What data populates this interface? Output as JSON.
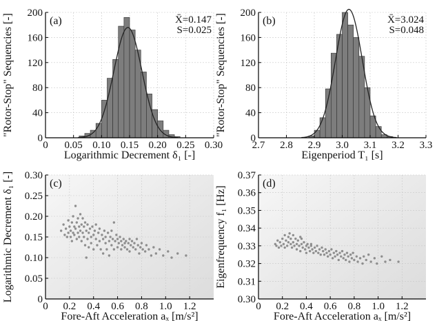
{
  "colors": {
    "bar_fill": "#7d7d7d",
    "bar_stroke": "#2e2e2e",
    "fit_curve": "#222222",
    "point": "#8e8e8e",
    "axis": "#000000",
    "grid": "#c8c8c8"
  },
  "chart_data": [
    {
      "id": "a",
      "type": "bar",
      "panel_label": "(a)",
      "xlabel": "Logarithmic Decrement δ₁ [-]",
      "ylabel": "\"Rotor-Stop\" Sequencies [-]",
      "stats": [
        "X̄=0.147",
        "S=0.025"
      ],
      "xlim": [
        0,
        0.3
      ],
      "ylim": [
        0,
        200
      ],
      "xticks": [
        "0",
        "0.05",
        "0.10",
        "0.15",
        "0.20",
        "0.25",
        "0.30"
      ],
      "yticks": [
        "0",
        "40",
        "80",
        "120",
        "160",
        "200"
      ],
      "xtick_values": [
        0,
        0.05,
        0.1,
        0.15,
        0.2,
        0.25,
        0.3
      ],
      "ytick_values": [
        0,
        40,
        80,
        120,
        160,
        200
      ],
      "bin_width": 0.01,
      "bin_starts": [
        0.06,
        0.07,
        0.08,
        0.09,
        0.1,
        0.11,
        0.12,
        0.13,
        0.14,
        0.15,
        0.16,
        0.17,
        0.18,
        0.19,
        0.2,
        0.21,
        0.22,
        0.23
      ],
      "values": [
        3,
        7,
        12,
        23,
        60,
        95,
        125,
        178,
        192,
        172,
        140,
        105,
        70,
        45,
        27,
        12,
        5,
        2
      ],
      "fit": {
        "mean": 0.147,
        "std": 0.025,
        "peak": 176
      },
      "grid": true
    },
    {
      "id": "b",
      "type": "bar",
      "panel_label": "(b)",
      "xlabel": "Eigenperiod T₁ [s]",
      "ylabel": "\"Rotor-Stop\" Sequencies [-]",
      "stats": [
        "X̄=3.024",
        "S=0.048"
      ],
      "xlim": [
        2.7,
        3.3
      ],
      "ylim": [
        0,
        200
      ],
      "xticks": [
        "2.7",
        "2.8",
        "2.9",
        "3.0",
        "3.1",
        "3.2",
        "3.3"
      ],
      "yticks": [
        "0",
        "40",
        "80",
        "120",
        "160",
        "200"
      ],
      "xtick_values": [
        2.7,
        2.8,
        2.9,
        3.0,
        3.1,
        3.2,
        3.3
      ],
      "ytick_values": [
        0,
        40,
        80,
        120,
        160,
        200
      ],
      "bin_width": 0.02,
      "bin_starts": [
        2.88,
        2.9,
        2.92,
        2.94,
        2.96,
        2.98,
        3.0,
        3.02,
        3.04,
        3.06,
        3.08,
        3.1,
        3.12,
        3.14,
        3.16
      ],
      "values": [
        3,
        12,
        32,
        78,
        135,
        165,
        200,
        180,
        160,
        130,
        80,
        35,
        18,
        5,
        2
      ],
      "fit": {
        "mean": 3.024,
        "std": 0.048,
        "peak": 205
      },
      "grid": true
    },
    {
      "id": "c",
      "type": "scatter",
      "panel_label": "(c)",
      "xlabel": "Fore-Aft Acceleration aₓ [m/s²]",
      "ylabel": "Logarithmic Decrement δ₁ [-]",
      "xlim": [
        0,
        1.4
      ],
      "ylim": [
        0,
        0.3
      ],
      "xticks": [
        "0",
        "0.2",
        "0.4",
        "0.6",
        "0.8",
        "1.0",
        "1.2"
      ],
      "yticks": [
        "0",
        "0.05",
        "0.10",
        "0.15",
        "0.20",
        "0.25",
        "0.30"
      ],
      "xtick_values": [
        0,
        0.2,
        0.4,
        0.6,
        0.8,
        1.0,
        1.2
      ],
      "ytick_values": [
        0,
        0.05,
        0.1,
        0.15,
        0.2,
        0.25,
        0.3
      ],
      "points": [
        [
          0.13,
          0.165
        ],
        [
          0.15,
          0.18
        ],
        [
          0.16,
          0.155
        ],
        [
          0.17,
          0.17
        ],
        [
          0.18,
          0.15
        ],
        [
          0.19,
          0.16
        ],
        [
          0.19,
          0.19
        ],
        [
          0.2,
          0.175
        ],
        [
          0.21,
          0.15
        ],
        [
          0.21,
          0.165
        ],
        [
          0.22,
          0.185
        ],
        [
          0.22,
          0.14
        ],
        [
          0.23,
          0.2
        ],
        [
          0.23,
          0.16
        ],
        [
          0.24,
          0.175
        ],
        [
          0.24,
          0.155
        ],
        [
          0.25,
          0.225
        ],
        [
          0.25,
          0.17
        ],
        [
          0.26,
          0.185
        ],
        [
          0.26,
          0.145
        ],
        [
          0.27,
          0.16
        ],
        [
          0.27,
          0.195
        ],
        [
          0.28,
          0.175
        ],
        [
          0.28,
          0.15
        ],
        [
          0.29,
          0.205
        ],
        [
          0.29,
          0.165
        ],
        [
          0.3,
          0.18
        ],
        [
          0.3,
          0.14
        ],
        [
          0.31,
          0.16
        ],
        [
          0.31,
          0.195
        ],
        [
          0.32,
          0.15
        ],
        [
          0.32,
          0.175
        ],
        [
          0.33,
          0.185
        ],
        [
          0.33,
          0.13
        ],
        [
          0.34,
          0.165
        ],
        [
          0.34,
          0.1
        ],
        [
          0.35,
          0.145
        ],
        [
          0.35,
          0.18
        ],
        [
          0.36,
          0.16
        ],
        [
          0.36,
          0.125
        ],
        [
          0.37,
          0.17
        ],
        [
          0.38,
          0.15
        ],
        [
          0.38,
          0.135
        ],
        [
          0.39,
          0.175
        ],
        [
          0.4,
          0.155
        ],
        [
          0.4,
          0.12
        ],
        [
          0.41,
          0.165
        ],
        [
          0.42,
          0.145
        ],
        [
          0.42,
          0.18
        ],
        [
          0.43,
          0.13
        ],
        [
          0.44,
          0.16
        ],
        [
          0.45,
          0.14
        ],
        [
          0.45,
          0.17
        ],
        [
          0.46,
          0.12
        ],
        [
          0.47,
          0.155
        ],
        [
          0.48,
          0.145
        ],
        [
          0.48,
          0.11
        ],
        [
          0.49,
          0.165
        ],
        [
          0.5,
          0.135
        ],
        [
          0.5,
          0.15
        ],
        [
          0.51,
          0.12
        ],
        [
          0.52,
          0.16
        ],
        [
          0.53,
          0.14
        ],
        [
          0.53,
          0.105
        ],
        [
          0.54,
          0.15
        ],
        [
          0.55,
          0.13
        ],
        [
          0.55,
          0.165
        ],
        [
          0.56,
          0.145
        ],
        [
          0.57,
          0.185
        ],
        [
          0.57,
          0.12
        ],
        [
          0.58,
          0.14
        ],
        [
          0.59,
          0.155
        ],
        [
          0.6,
          0.125
        ],
        [
          0.6,
          0.145
        ],
        [
          0.61,
          0.135
        ],
        [
          0.62,
          0.15
        ],
        [
          0.63,
          0.12
        ],
        [
          0.63,
          0.14
        ],
        [
          0.64,
          0.13
        ],
        [
          0.65,
          0.145
        ],
        [
          0.66,
          0.125
        ],
        [
          0.66,
          0.135
        ],
        [
          0.67,
          0.14
        ],
        [
          0.68,
          0.12
        ],
        [
          0.69,
          0.135
        ],
        [
          0.7,
          0.145
        ],
        [
          0.7,
          0.115
        ],
        [
          0.71,
          0.13
        ],
        [
          0.72,
          0.14
        ],
        [
          0.73,
          0.125
        ],
        [
          0.74,
          0.135
        ],
        [
          0.75,
          0.12
        ],
        [
          0.76,
          0.145
        ],
        [
          0.77,
          0.13
        ],
        [
          0.78,
          0.11
        ],
        [
          0.79,
          0.125
        ],
        [
          0.8,
          0.135
        ],
        [
          0.81,
          0.12
        ],
        [
          0.83,
          0.115
        ],
        [
          0.84,
          0.13
        ],
        [
          0.86,
          0.12
        ],
        [
          0.88,
          0.105
        ],
        [
          0.9,
          0.125
        ],
        [
          0.92,
          0.11
        ],
        [
          0.95,
          0.12
        ],
        [
          0.98,
          0.105
        ],
        [
          1.02,
          0.115
        ],
        [
          1.05,
          0.1
        ],
        [
          1.1,
          0.11
        ],
        [
          1.17,
          0.105
        ]
      ],
      "grid": true
    },
    {
      "id": "d",
      "type": "scatter",
      "panel_label": "(d)",
      "xlabel": "Fore-Aft Acceleration aₓ [m/s²]",
      "ylabel": "Eigenfrequency f₁ [Hz]",
      "xlim": [
        0,
        1.4
      ],
      "ylim": [
        0.3,
        0.37
      ],
      "xticks": [
        "0",
        "0.2",
        "0.4",
        "0.6",
        "0.8",
        "1.0",
        "1.2"
      ],
      "yticks": [
        "0.30",
        "0.31",
        "0.32",
        "0.33",
        "0.34",
        "0.35",
        "0.36",
        "0.37"
      ],
      "xtick_values": [
        0,
        0.2,
        0.4,
        0.6,
        0.8,
        1.0,
        1.2
      ],
      "ytick_values": [
        0.3,
        0.31,
        0.32,
        0.33,
        0.34,
        0.35,
        0.36,
        0.37
      ],
      "points": [
        [
          0.14,
          0.331
        ],
        [
          0.15,
          0.33
        ],
        [
          0.16,
          0.333
        ],
        [
          0.17,
          0.329
        ],
        [
          0.18,
          0.332
        ],
        [
          0.19,
          0.33
        ],
        [
          0.2,
          0.334
        ],
        [
          0.21,
          0.331
        ],
        [
          0.22,
          0.336
        ],
        [
          0.22,
          0.329
        ],
        [
          0.23,
          0.333
        ],
        [
          0.24,
          0.33
        ],
        [
          0.25,
          0.335
        ],
        [
          0.25,
          0.332
        ],
        [
          0.26,
          0.337
        ],
        [
          0.27,
          0.331
        ],
        [
          0.27,
          0.334
        ],
        [
          0.28,
          0.329
        ],
        [
          0.29,
          0.336
        ],
        [
          0.29,
          0.332
        ],
        [
          0.3,
          0.33
        ],
        [
          0.31,
          0.334
        ],
        [
          0.32,
          0.331
        ],
        [
          0.32,
          0.328
        ],
        [
          0.33,
          0.333
        ],
        [
          0.34,
          0.33
        ],
        [
          0.35,
          0.335
        ],
        [
          0.35,
          0.327
        ],
        [
          0.36,
          0.331
        ],
        [
          0.37,
          0.329
        ],
        [
          0.38,
          0.332
        ],
        [
          0.39,
          0.328
        ],
        [
          0.4,
          0.33
        ],
        [
          0.4,
          0.326
        ],
        [
          0.41,
          0.331
        ],
        [
          0.42,
          0.329
        ],
        [
          0.43,
          0.327
        ],
        [
          0.44,
          0.33
        ],
        [
          0.45,
          0.328
        ],
        [
          0.46,
          0.326
        ],
        [
          0.47,
          0.329
        ],
        [
          0.48,
          0.327
        ],
        [
          0.49,
          0.33
        ],
        [
          0.5,
          0.326
        ],
        [
          0.51,
          0.328
        ],
        [
          0.52,
          0.325
        ],
        [
          0.53,
          0.329
        ],
        [
          0.54,
          0.327
        ],
        [
          0.55,
          0.325
        ],
        [
          0.56,
          0.328
        ],
        [
          0.57,
          0.326
        ],
        [
          0.58,
          0.324
        ],
        [
          0.59,
          0.327
        ],
        [
          0.6,
          0.325
        ],
        [
          0.61,
          0.328
        ],
        [
          0.62,
          0.323
        ],
        [
          0.63,
          0.326
        ],
        [
          0.64,
          0.324
        ],
        [
          0.65,
          0.327
        ],
        [
          0.66,
          0.325
        ],
        [
          0.67,
          0.322
        ],
        [
          0.68,
          0.326
        ],
        [
          0.69,
          0.324
        ],
        [
          0.7,
          0.327
        ],
        [
          0.71,
          0.323
        ],
        [
          0.72,
          0.325
        ],
        [
          0.73,
          0.322
        ],
        [
          0.74,
          0.326
        ],
        [
          0.75,
          0.324
        ],
        [
          0.76,
          0.321
        ],
        [
          0.77,
          0.325
        ],
        [
          0.78,
          0.323
        ],
        [
          0.79,
          0.326
        ],
        [
          0.8,
          0.322
        ],
        [
          0.82,
          0.324
        ],
        [
          0.83,
          0.321
        ],
        [
          0.85,
          0.323
        ],
        [
          0.87,
          0.32
        ],
        [
          0.88,
          0.324
        ],
        [
          0.9,
          0.322
        ],
        [
          0.92,
          0.325
        ],
        [
          0.94,
          0.321
        ],
        [
          0.97,
          0.323
        ],
        [
          0.99,
          0.32
        ],
        [
          1.03,
          0.324
        ],
        [
          1.06,
          0.321
        ],
        [
          1.1,
          0.322
        ],
        [
          1.17,
          0.321
        ],
        [
          0.36,
          0.334
        ],
        [
          0.44,
          0.331
        ]
      ],
      "grid": true
    }
  ]
}
